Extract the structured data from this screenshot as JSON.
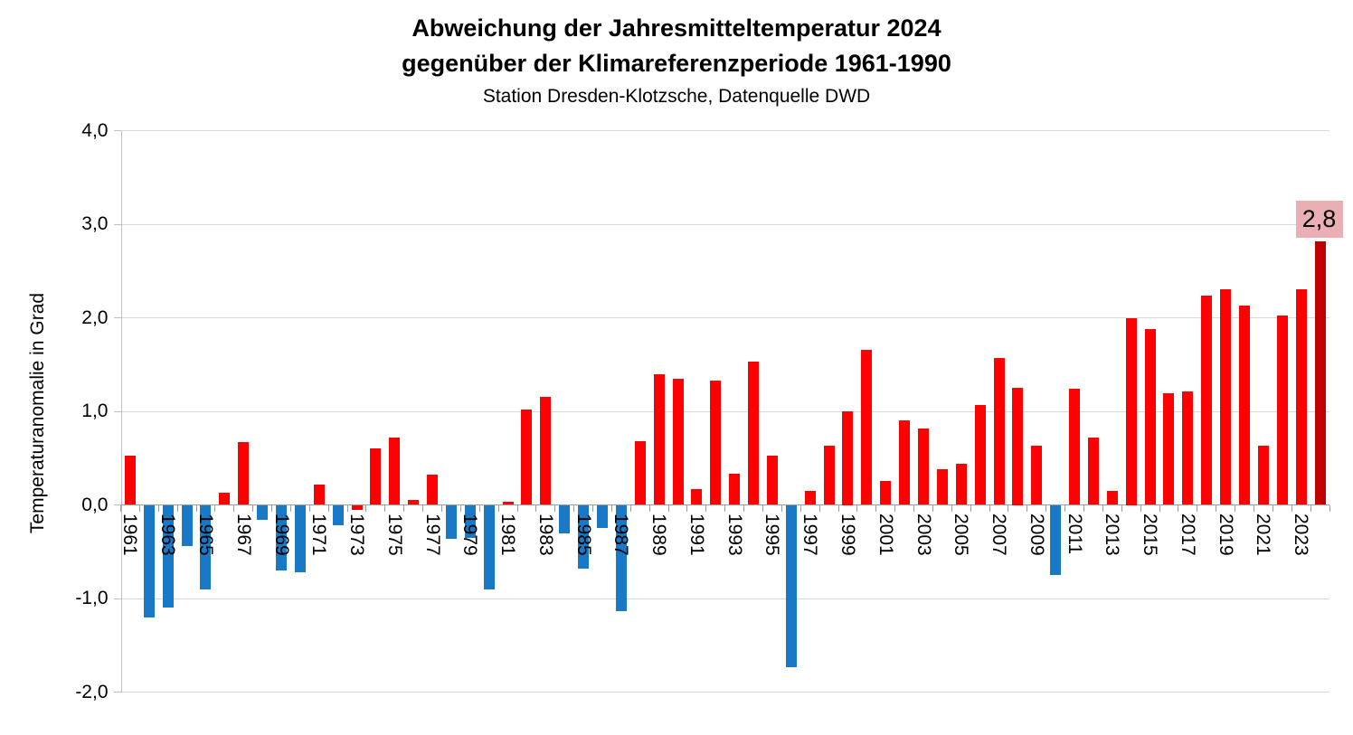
{
  "header": {
    "title_line1": "Abweichung der Jahresmitteltemperatur 2024",
    "title_line2": "gegenüber der Klimareferenzperiode 1961-1990",
    "subtitle": "Station Dresden-Klotzsche, Datenquelle DWD"
  },
  "chart_data": {
    "type": "bar",
    "title": "Abweichung der Jahresmitteltemperatur 2024 gegenüber der Klimareferenzperiode 1961-1990",
    "subtitle": "Station Dresden-Klotzsche, Datenquelle DWD",
    "xlabel": "",
    "ylabel": "Temperaturanomalie in Grad",
    "ylim": [
      -2.0,
      4.0
    ],
    "grid": true,
    "legend": false,
    "y_ticks": [
      {
        "value": 4,
        "label": "4,0"
      },
      {
        "value": 3,
        "label": "3,0"
      },
      {
        "value": 2,
        "label": "2,0"
      },
      {
        "value": 1,
        "label": "1,0"
      },
      {
        "value": 0,
        "label": "0,0"
      },
      {
        "value": -1,
        "label": "-1,0"
      },
      {
        "value": -2,
        "label": "-2,0"
      }
    ],
    "x_tick_labels": [
      "1961",
      "1963",
      "1965",
      "1967",
      "1969",
      "1971",
      "1973",
      "1975",
      "1977",
      "1979",
      "1981",
      "1983",
      "1985",
      "1987",
      "1989",
      "1991",
      "1993",
      "1995",
      "1997",
      "1999",
      "2001",
      "2003",
      "2005",
      "2007",
      "2009",
      "2011",
      "2013",
      "2015",
      "2017",
      "2019",
      "2021",
      "2023"
    ],
    "series": [
      {
        "year": 1961,
        "value": 0.53,
        "color": "pos"
      },
      {
        "year": 1962,
        "value": -1.2,
        "color": "neg"
      },
      {
        "year": 1963,
        "value": -1.1,
        "color": "neg"
      },
      {
        "year": 1964,
        "value": -0.44,
        "color": "neg"
      },
      {
        "year": 1965,
        "value": -0.9,
        "color": "neg"
      },
      {
        "year": 1966,
        "value": 0.13,
        "color": "pos"
      },
      {
        "year": 1967,
        "value": 0.67,
        "color": "pos"
      },
      {
        "year": 1968,
        "value": -0.16,
        "color": "neg"
      },
      {
        "year": 1969,
        "value": -0.7,
        "color": "neg"
      },
      {
        "year": 1970,
        "value": -0.72,
        "color": "neg"
      },
      {
        "year": 1971,
        "value": 0.22,
        "color": "pos"
      },
      {
        "year": 1972,
        "value": -0.22,
        "color": "neg"
      },
      {
        "year": 1973,
        "value": -0.05,
        "color": "pos"
      },
      {
        "year": 1974,
        "value": 0.6,
        "color": "pos"
      },
      {
        "year": 1975,
        "value": 0.72,
        "color": "pos"
      },
      {
        "year": 1976,
        "value": 0.05,
        "color": "pos"
      },
      {
        "year": 1977,
        "value": 0.32,
        "color": "pos"
      },
      {
        "year": 1978,
        "value": -0.36,
        "color": "neg"
      },
      {
        "year": 1979,
        "value": -0.35,
        "color": "neg"
      },
      {
        "year": 1980,
        "value": -0.9,
        "color": "neg"
      },
      {
        "year": 1981,
        "value": 0.03,
        "color": "pos"
      },
      {
        "year": 1982,
        "value": 1.02,
        "color": "pos"
      },
      {
        "year": 1983,
        "value": 1.15,
        "color": "pos"
      },
      {
        "year": 1984,
        "value": -0.3,
        "color": "neg"
      },
      {
        "year": 1985,
        "value": -0.68,
        "color": "neg"
      },
      {
        "year": 1986,
        "value": -0.25,
        "color": "neg"
      },
      {
        "year": 1987,
        "value": -1.14,
        "color": "neg"
      },
      {
        "year": 1988,
        "value": 0.68,
        "color": "pos"
      },
      {
        "year": 1989,
        "value": 1.4,
        "color": "pos"
      },
      {
        "year": 1990,
        "value": 1.35,
        "color": "pos"
      },
      {
        "year": 1991,
        "value": 0.17,
        "color": "pos"
      },
      {
        "year": 1992,
        "value": 1.33,
        "color": "pos"
      },
      {
        "year": 1993,
        "value": 0.33,
        "color": "pos"
      },
      {
        "year": 1994,
        "value": 1.53,
        "color": "pos"
      },
      {
        "year": 1995,
        "value": 0.53,
        "color": "pos"
      },
      {
        "year": 1996,
        "value": -1.73,
        "color": "neg"
      },
      {
        "year": 1997,
        "value": 0.15,
        "color": "pos"
      },
      {
        "year": 1998,
        "value": 0.63,
        "color": "pos"
      },
      {
        "year": 1999,
        "value": 1.0,
        "color": "pos"
      },
      {
        "year": 2000,
        "value": 1.66,
        "color": "pos"
      },
      {
        "year": 2001,
        "value": 0.26,
        "color": "pos"
      },
      {
        "year": 2002,
        "value": 0.9,
        "color": "pos"
      },
      {
        "year": 2003,
        "value": 0.82,
        "color": "pos"
      },
      {
        "year": 2004,
        "value": 0.38,
        "color": "pos"
      },
      {
        "year": 2005,
        "value": 0.44,
        "color": "pos"
      },
      {
        "year": 2006,
        "value": 1.07,
        "color": "pos"
      },
      {
        "year": 2007,
        "value": 1.57,
        "color": "pos"
      },
      {
        "year": 2008,
        "value": 1.25,
        "color": "pos"
      },
      {
        "year": 2009,
        "value": 0.63,
        "color": "pos"
      },
      {
        "year": 2010,
        "value": -0.75,
        "color": "neg"
      },
      {
        "year": 2011,
        "value": 1.24,
        "color": "pos"
      },
      {
        "year": 2012,
        "value": 0.72,
        "color": "pos"
      },
      {
        "year": 2013,
        "value": 0.15,
        "color": "pos"
      },
      {
        "year": 2014,
        "value": 2.0,
        "color": "pos"
      },
      {
        "year": 2015,
        "value": 1.88,
        "color": "pos"
      },
      {
        "year": 2016,
        "value": 1.19,
        "color": "pos"
      },
      {
        "year": 2017,
        "value": 1.21,
        "color": "pos"
      },
      {
        "year": 2018,
        "value": 2.24,
        "color": "pos"
      },
      {
        "year": 2019,
        "value": 2.3,
        "color": "pos"
      },
      {
        "year": 2020,
        "value": 2.13,
        "color": "pos"
      },
      {
        "year": 2021,
        "value": 0.63,
        "color": "pos"
      },
      {
        "year": 2022,
        "value": 2.02,
        "color": "pos"
      },
      {
        "year": 2023,
        "value": 2.3,
        "color": "pos"
      },
      {
        "year": 2024,
        "value": 2.82,
        "color": "highlight"
      }
    ],
    "colors": {
      "pos": "#fe0000",
      "neg": "#1879c6",
      "highlight": "#c00000",
      "annotation_bg": "#e9afb2",
      "gridline": "#d9d9d9",
      "axis": "#9d9d9d"
    },
    "annotation": {
      "text": "2,8",
      "year": 2024
    }
  }
}
